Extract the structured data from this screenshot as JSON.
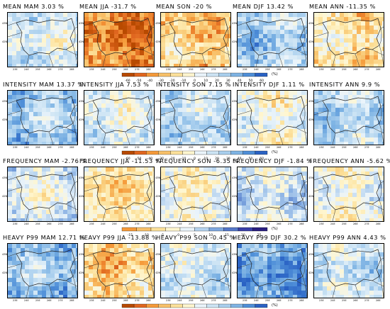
{
  "rows": [
    {
      "name": "mean",
      "titles": [
        "MEAN MAM 3.03 %",
        "MEAN JJA -31.7 %",
        "MEAN SON -20 %",
        "MEAN DJF 13.42 %",
        "MEAN ANN -11.35 %"
      ],
      "fill": [
        0.55,
        -2.0,
        -1.0,
        1.2,
        -0.6
      ],
      "colorbar": {
        "ticks": [
          "-60",
          "-50",
          "-40",
          "-30",
          "-20",
          "-10",
          "0",
          "10",
          "20",
          "30",
          "40",
          "50",
          "60"
        ],
        "unit": "(%)"
      }
    },
    {
      "name": "intensity",
      "titles": [
        "INTENSITY MAM 13.37 %",
        "INTENSITY JJA 7.53 %",
        "INTENSITY SON 7.15 %",
        "INTENSITY DJF 1.11 %",
        "INTENSITY ANN 9.9 %"
      ],
      "fill": [
        1.2,
        0.4,
        0.9,
        0.05,
        1.0
      ],
      "colorbar": {
        "ticks": [
          "-60",
          "-50",
          "-40",
          "-30",
          "-20",
          "-10",
          "0",
          "10",
          "20",
          "30",
          "40",
          "50",
          "60"
        ],
        "unit": "(%)"
      }
    },
    {
      "name": "frequency",
      "titles": [
        "FREQUENCY MAM -2.76 %",
        "FREQUENCY JJA -11.53 %",
        "FREQUENCY SON -6.35 %",
        "FREQUENCY DJF -1.84 %",
        "FREQUENCY ANN -5.62 %"
      ],
      "fill": [
        -0.35,
        -1.4,
        -0.7,
        -0.1,
        -0.6
      ],
      "colorbar": {
        "ticks": [
          "-15",
          "-10",
          "-5",
          "0",
          "5",
          "10",
          "15",
          "20",
          "25"
        ],
        "unit": "(%)"
      }
    },
    {
      "name": "heavy",
      "titles": [
        "HEAVY P99 MAM 12.71 %",
        "HEAVY P99 JJA -13.88 %",
        "HEAVY P99 SON -0.45 %",
        "HEAVY P99 DJF 30.2 %",
        "HEAVY P99 ANN 4.43 %"
      ],
      "fill": [
        1.3,
        -1.0,
        0.6,
        2.0,
        0.7
      ],
      "colorbar": {
        "ticks": [
          "-60",
          "-50",
          "-40",
          "-30",
          "-20",
          "-10",
          "0",
          "10",
          "20",
          "30",
          "40",
          "50",
          "60"
        ],
        "unit": "(%)"
      }
    }
  ],
  "axes": {
    "y_ticks": [
      "43N",
      "42N"
    ],
    "x_ticks": [
      "23E",
      "24E",
      "25E",
      "26E",
      "27E",
      "28E"
    ]
  },
  "palettes": {
    "diverging": [
      "#b84a00",
      "#e0661f",
      "#f59a3a",
      "#f8c16a",
      "#fce19b",
      "#fff6cf",
      "#eaf4fb",
      "#cde4f4",
      "#a9cfee",
      "#7fb4e4",
      "#4f8fd8",
      "#2a62c4"
    ],
    "frequency": [
      "#f59a3a",
      "#f8c16a",
      "#fce19b",
      "#fff6cf",
      "#eaf4fb",
      "#b6d3ef",
      "#7fa8e0",
      "#5577c8",
      "#3a3fa8",
      "#2a1f80"
    ]
  }
}
